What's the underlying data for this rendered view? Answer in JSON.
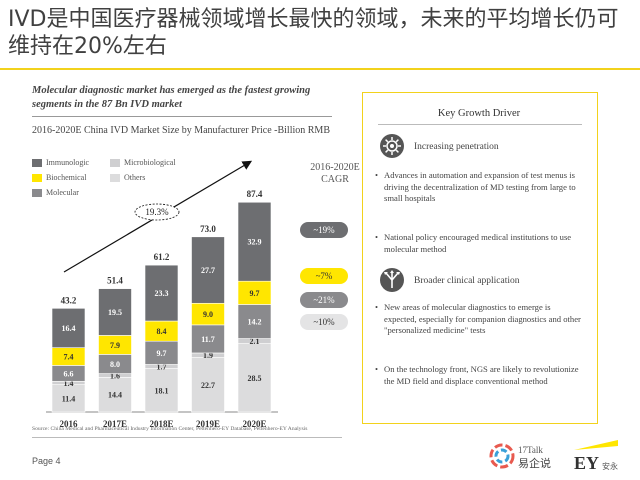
{
  "slide": {
    "title": "IVD是中国医疗器械领域增长最快的领域，未来的平均增长仍可维持在20%左右",
    "subtitle": "Molecular diagnostic market has emerged as the fastest growing segments in the 87 Bn IVD market",
    "chart_heading": "2016-2020E China IVD Market Size by Manufacturer Price -Billion RMB",
    "source": "Source: China Medical and Pharmaceutical Industry Information Center, Pettenhero-EY Database, Pettenhero-EY Analysis",
    "page": "Page 4"
  },
  "colors": {
    "Immunologic": "#6d6e71",
    "Biochemical": "#ffe600",
    "Molecular": "#8a8a8d",
    "Microbiological": "#cfcfd1",
    "Others": "#dcdcdd",
    "accent": "#f2d21c"
  },
  "chart_data": {
    "type": "bar",
    "stacked": true,
    "title": "2016-2020E China IVD Market Size by Manufacturer Price -Billion RMB",
    "categories": [
      "2016",
      "2017E",
      "2018E",
      "2019E",
      "2020E"
    ],
    "totals": [
      "43.2",
      "51.4",
      "61.2",
      "73.0",
      "87.4"
    ],
    "series": [
      {
        "name": "Others",
        "values": [
          11.4,
          14.4,
          18.1,
          22.7,
          28.5
        ]
      },
      {
        "name": "Microbiological",
        "values": [
          1.4,
          1.6,
          1.7,
          1.9,
          2.1
        ]
      },
      {
        "name": "Molecular",
        "values": [
          6.6,
          8.0,
          9.7,
          11.7,
          14.2
        ]
      },
      {
        "name": "Biochemical",
        "values": [
          7.4,
          7.9,
          8.4,
          9.0,
          9.7
        ]
      },
      {
        "name": "Immunologic",
        "values": [
          16.4,
          19.5,
          23.3,
          27.7,
          32.9
        ]
      }
    ],
    "legend": [
      "Immunologic",
      "Microbiological",
      "Biochemical",
      "Others",
      "Molecular"
    ],
    "growth_arrow_label": "19.3%",
    "cagr_heading": "2016-2020E CAGR",
    "cagr": [
      {
        "series": "Immunologic",
        "label": "~19%"
      },
      {
        "series": "Biochemical",
        "label": "~7%"
      },
      {
        "series": "Molecular",
        "label": "~21%"
      },
      {
        "series": "Microbiological",
        "label": "~10%"
      }
    ],
    "ylim": [
      0,
      95
    ]
  },
  "key_growth": {
    "title": "Key Growth Driver",
    "drivers": [
      {
        "icon": "gear-network-icon",
        "label": "Increasing penetration",
        "bullets": [
          "Advances in automation and expansion of test menus is driving the decentralization of MD testing from large to small hospitals",
          "National policy encouraged medical institutions to use molecular method"
        ]
      },
      {
        "icon": "diverging-arrows-icon",
        "label": "Broader clinical application",
        "bullets": [
          "New areas of molecular diagnostics to emerge is expected, especially for companion diagnostics and other \"personalized medicine\" tests",
          "On the technology front, NGS are likely to revolutionize the MD field and displace conventional method"
        ]
      }
    ]
  },
  "logos": {
    "talk17_top": "17Talk",
    "talk17_bottom": "易企说",
    "ey": "EY",
    "ey_sub": "安永"
  }
}
